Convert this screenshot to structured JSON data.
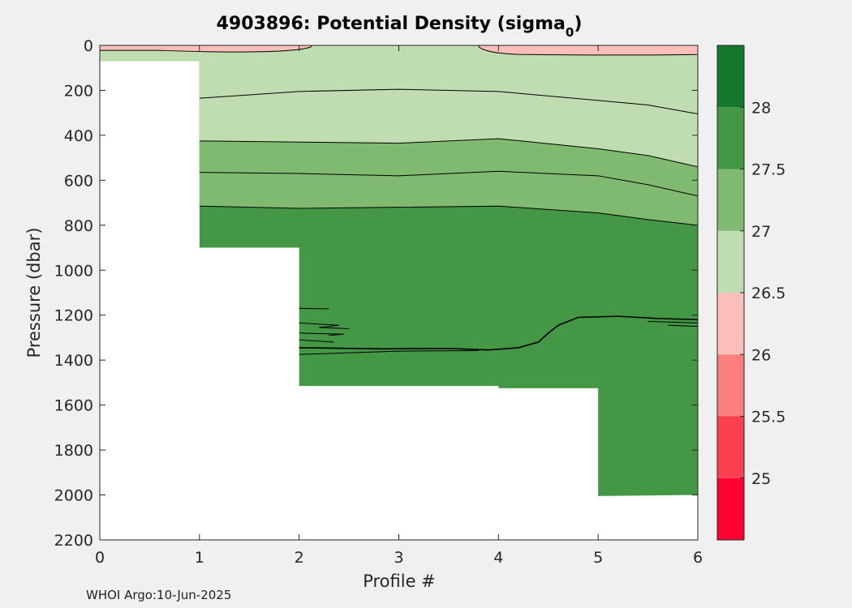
{
  "chart_data": {
    "type": "contourf",
    "title_main": "4903896: Potential Density (sigma",
    "title_sub": "0",
    "title_end": ")",
    "xlabel": "Profile #",
    "ylabel": "Pressure (dbar)",
    "xlim": [
      0,
      6
    ],
    "ylim": [
      0,
      2200
    ],
    "y_reversed": true,
    "x_ticks": [
      "0",
      "1",
      "2",
      "3",
      "4",
      "5",
      "6"
    ],
    "y_ticks": [
      "0",
      "200",
      "400",
      "600",
      "800",
      "1000",
      "1200",
      "1400",
      "1600",
      "1800",
      "2000",
      "2200"
    ],
    "colorbar": {
      "range": [
        24.5,
        28.5
      ],
      "bands": [
        {
          "from": 24.5,
          "to": 25.0,
          "color": "#ff0033"
        },
        {
          "from": 25.0,
          "to": 25.5,
          "color": "#fc404f"
        },
        {
          "from": 25.5,
          "to": 26.0,
          "color": "#fa8080"
        },
        {
          "from": 26.0,
          "to": 26.5,
          "color": "#fbbfbb"
        },
        {
          "from": 26.5,
          "to": 27.0,
          "color": "#bfddb0"
        },
        {
          "from": 27.0,
          "to": 27.5,
          "color": "#7fba70"
        },
        {
          "from": 27.5,
          "to": 28.0,
          "color": "#439745"
        },
        {
          "from": 28.0,
          "to": 28.5,
          "color": "#14772b"
        }
      ],
      "tick_labels": [
        "25",
        "25.5",
        "26",
        "26.5",
        "27",
        "27.5",
        "28"
      ]
    },
    "profile_max_depth": [
      {
        "profile": 0,
        "max_pressure": 70
      },
      {
        "profile": 1,
        "max_pressure": 900
      },
      {
        "profile": 2,
        "max_pressure": 1515
      },
      {
        "profile": 3,
        "max_pressure": 1515
      },
      {
        "profile": 4,
        "max_pressure": 1525
      },
      {
        "profile": 5,
        "max_pressure": 2005
      },
      {
        "profile": 6,
        "max_pressure": 2000
      }
    ],
    "isopycnals": [
      {
        "level": 26.5,
        "x": [
          1,
          2,
          3,
          4,
          5,
          5.5,
          6
        ],
        "p": [
          235,
          205,
          195,
          205,
          245,
          265,
          305
        ]
      },
      {
        "level": 26.5,
        "note_surface_lens": true,
        "x": [
          0,
          0.5,
          1,
          1.5,
          2,
          2.1
        ],
        "p": [
          40,
          40,
          35,
          35,
          25,
          0
        ]
      },
      {
        "level": 27.0,
        "x": [
          1,
          2,
          3,
          4,
          5,
          5.5,
          6
        ],
        "p": [
          425,
          430,
          435,
          415,
          460,
          490,
          540
        ]
      },
      {
        "level": 27.5,
        "x": [
          1,
          2,
          3,
          4,
          5,
          5.5,
          6
        ],
        "p": [
          565,
          570,
          580,
          560,
          580,
          620,
          670
        ]
      },
      {
        "level": 28.0,
        "x": [
          1,
          2,
          3,
          4,
          5,
          5.5,
          6
        ],
        "p": [
          715,
          725,
          720,
          715,
          745,
          775,
          800
        ]
      }
    ]
  },
  "footer": {
    "credit": "WHOI Argo:10-Jun-2025"
  }
}
